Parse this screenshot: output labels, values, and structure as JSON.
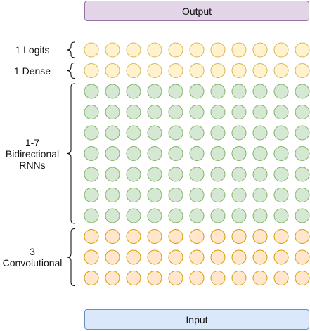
{
  "output": {
    "label": "Output",
    "fill": "#e1d5e7",
    "stroke": "#9673a6"
  },
  "input": {
    "label": "Input",
    "fill": "#dae8fc",
    "stroke": "#6c8ebf"
  },
  "neurons_per_row": 11,
  "groups": [
    {
      "id": "logits",
      "label": "1 Logits",
      "rows": 1,
      "fill": "#fff2cc",
      "stroke": "#d6b656"
    },
    {
      "id": "dense",
      "label": "1 Dense",
      "rows": 1,
      "fill": "#fff2cc",
      "stroke": "#d6b656"
    },
    {
      "id": "rnn",
      "label": "1-7\nBidirectional\nRNNs",
      "rows": 7,
      "fill": "#d5e8d4",
      "stroke": "#82b366"
    },
    {
      "id": "conv",
      "label": "3\nConvolutional",
      "rows": 3,
      "fill": "#ffe6cc",
      "stroke": "#d79b00"
    }
  ]
}
